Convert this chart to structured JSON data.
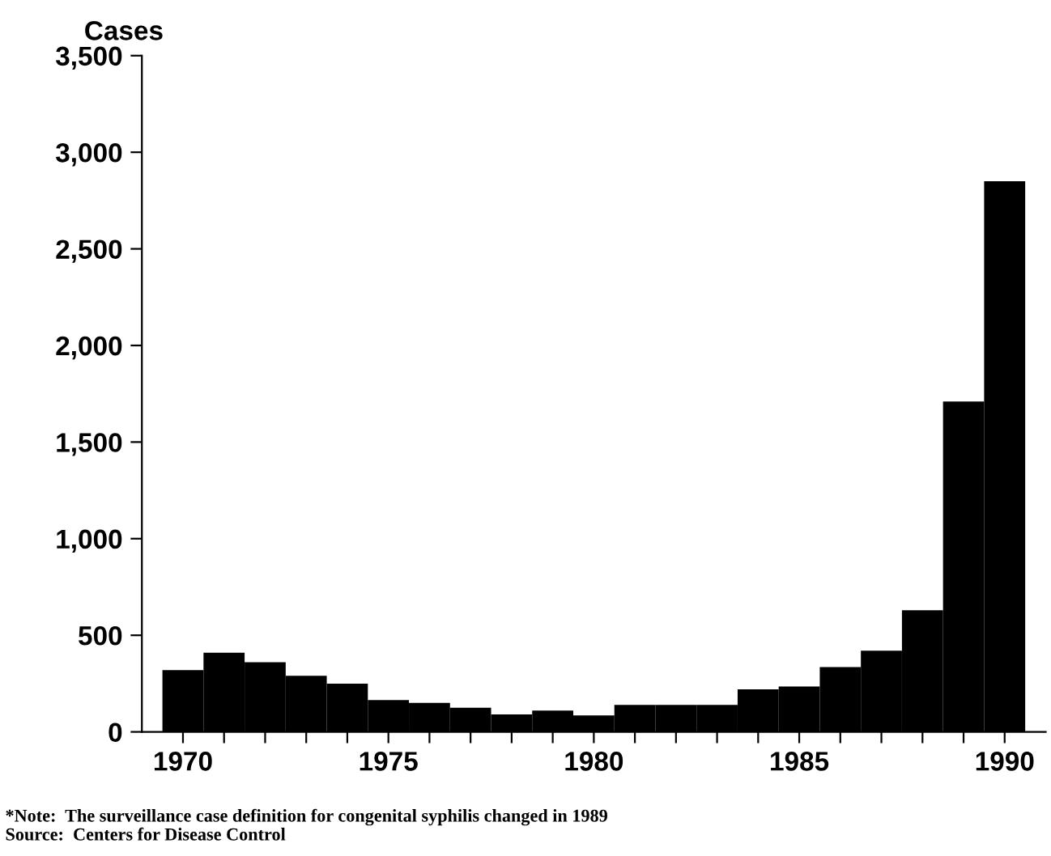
{
  "chart_data": {
    "type": "bar",
    "ylabel": "Cases",
    "x": [
      1970,
      1971,
      1972,
      1973,
      1974,
      1975,
      1976,
      1977,
      1978,
      1979,
      1980,
      1981,
      1982,
      1983,
      1984,
      1985,
      1986,
      1987,
      1988,
      1989,
      1990
    ],
    "values": [
      320,
      410,
      360,
      290,
      250,
      165,
      150,
      125,
      90,
      110,
      85,
      140,
      140,
      140,
      220,
      235,
      335,
      420,
      630,
      1710,
      2850
    ],
    "color": "#000000",
    "xlim": [
      1969,
      1991
    ],
    "xticks": [
      1970,
      {
        "value": 1971,
        "label": null
      },
      {
        "value": 1972,
        "label": null
      },
      {
        "value": 1973,
        "label": null
      },
      {
        "value": 1974,
        "label": null
      },
      1975,
      {
        "value": 1976,
        "label": null
      },
      {
        "value": 1977,
        "label": null
      },
      {
        "value": 1978,
        "label": null
      },
      {
        "value": 1979,
        "label": null
      },
      1980,
      {
        "value": 1981,
        "label": null
      },
      {
        "value": 1982,
        "label": null
      },
      {
        "value": 1983,
        "label": null
      },
      {
        "value": 1984,
        "label": null
      },
      1985,
      {
        "value": 1986,
        "label": null
      },
      {
        "value": 1987,
        "label": null
      },
      {
        "value": 1988,
        "label": null
      },
      {
        "value": 1989,
        "label": null
      },
      1990
    ],
    "ylim": [
      0,
      3500
    ],
    "yticks": [
      0,
      {
        "value": 500,
        "label": "500"
      },
      {
        "value": 1000,
        "label": "1,000"
      },
      {
        "value": 1500,
        "label": "1,500"
      },
      {
        "value": 2000,
        "label": "2,000"
      },
      {
        "value": 2500,
        "label": "2,500"
      },
      {
        "value": 3000,
        "label": "3,000"
      },
      {
        "value": 3500,
        "label": "3,500"
      }
    ],
    "grid": false,
    "legend": false,
    "annotations": [
      "*Note:  The surveillance case definition for congenital syphilis changed in 1989",
      "Source:  Centers for Disease Control"
    ]
  }
}
